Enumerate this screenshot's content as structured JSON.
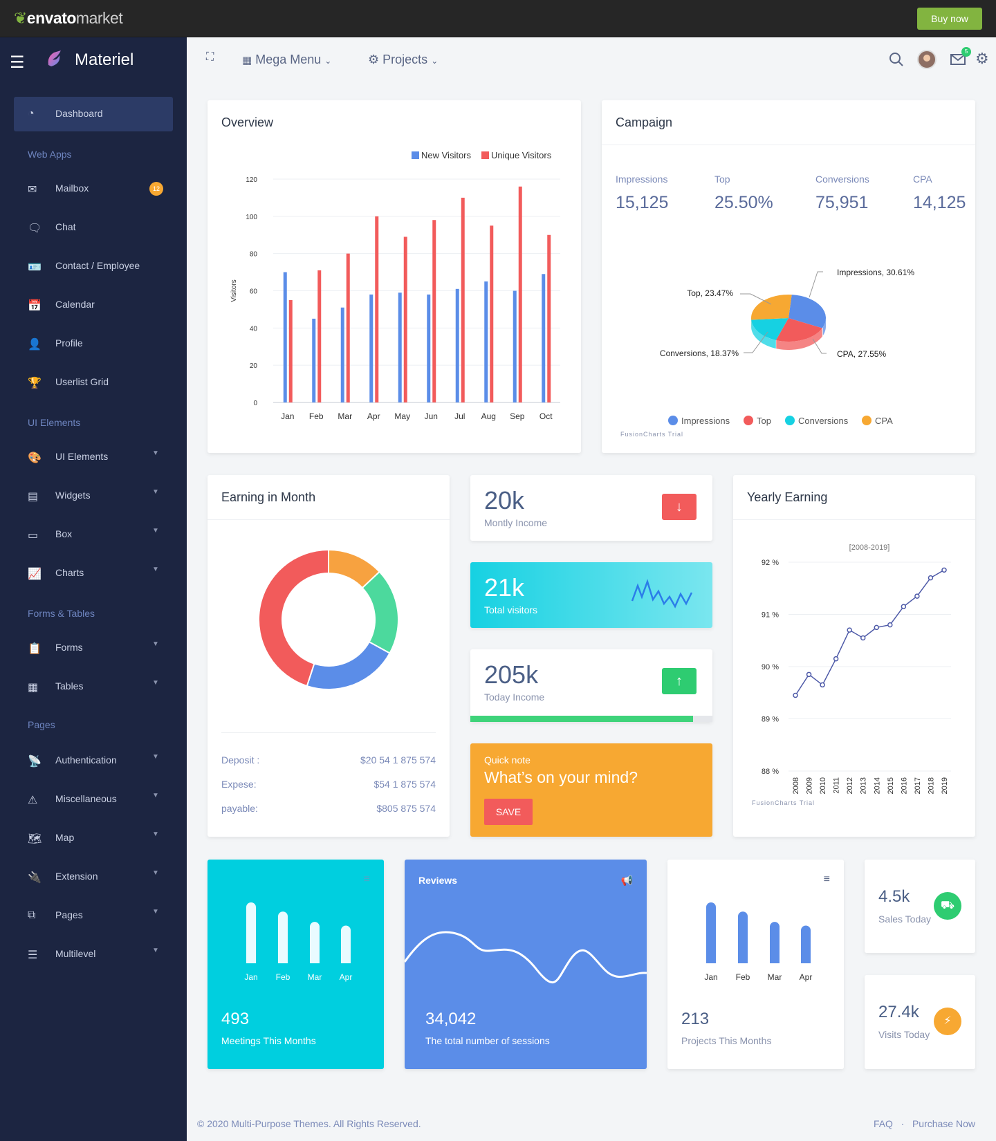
{
  "topbar": {
    "brand_envato": "envato",
    "brand_market": "market",
    "buy_label": "Buy now"
  },
  "sidebar": {
    "app_name": "Materiel",
    "dashboard": "Dashboard",
    "sections": [
      "Web Apps",
      "UI Elements",
      "Forms & Tables",
      "Pages"
    ],
    "items": [
      {
        "label": "Mailbox",
        "icon": "mail-icon"
      },
      {
        "label": "Chat",
        "icon": "chat-icon"
      },
      {
        "label": "Contact / Employee",
        "icon": "contact-card-icon"
      },
      {
        "label": "Calendar",
        "icon": "calendar-icon"
      },
      {
        "label": "Profile",
        "icon": "user-icon"
      },
      {
        "label": "Userlist Grid",
        "icon": "trophy-icon"
      },
      {
        "label": "UI Elements",
        "icon": "palette-icon"
      },
      {
        "label": "Widgets",
        "icon": "widget-icon"
      },
      {
        "label": "Box",
        "icon": "box-icon"
      },
      {
        "label": "Charts",
        "icon": "chart-line-icon"
      },
      {
        "label": "Forms",
        "icon": "clipboard-icon"
      },
      {
        "label": "Tables",
        "icon": "table-icon"
      },
      {
        "label": "Authentication",
        "icon": "antenna-icon"
      },
      {
        "label": "Miscellaneous",
        "icon": "warning-icon"
      },
      {
        "label": "Map",
        "icon": "map-icon"
      },
      {
        "label": "Extension",
        "icon": "plug-icon"
      },
      {
        "label": "Pages",
        "icon": "pages-icon"
      },
      {
        "label": "Multilevel",
        "icon": "layers-icon"
      }
    ],
    "mail_badge": "12"
  },
  "header": {
    "mega_menu": "Mega Menu",
    "projects": "Projects",
    "mail_count": "5"
  },
  "overview": {
    "title": "Overview",
    "chart_data": {
      "type": "bar",
      "categories": [
        "Jan",
        "Feb",
        "Mar",
        "Apr",
        "May",
        "Jun",
        "Jul",
        "Aug",
        "Sep",
        "Oct"
      ],
      "series": [
        {
          "name": "New Visitors",
          "color": "#5b8de8",
          "values": [
            70,
            45,
            51,
            58,
            59,
            58,
            61,
            65,
            60,
            69
          ]
        },
        {
          "name": "Unique Visitors",
          "color": "#f25b5b",
          "values": [
            55,
            71,
            80,
            100,
            89,
            98,
            110,
            95,
            116,
            90
          ]
        }
      ],
      "ylabel": "Visitors",
      "ylim": [
        0,
        120
      ],
      "yticks": [
        0,
        20,
        40,
        60,
        80,
        100,
        120
      ],
      "legend": "top-right",
      "grid": true
    }
  },
  "campaign": {
    "title": "Campaign",
    "stats": [
      {
        "label": "Impressions",
        "value": "15,125"
      },
      {
        "label": "Top",
        "value": "25.50%"
      },
      {
        "label": "Conversions",
        "value": "75,951"
      },
      {
        "label": "CPA",
        "value": "14,125"
      }
    ],
    "chart_data": {
      "type": "pie",
      "labels": [
        "Impressions",
        "Top",
        "Conversions",
        "CPA"
      ],
      "values": [
        30.61,
        23.47,
        18.37,
        27.55
      ],
      "slice_labels": [
        "Impressions, 30.61%",
        "Top, 23.47%",
        "Conversions, 18.37%",
        "CPA, 27.55%"
      ],
      "colors": [
        "#5b8de8",
        "#f25b5b",
        "#16d1e2",
        "#f7a832"
      ],
      "legend": "bottom"
    },
    "credit": "FusionCharts Trial"
  },
  "earning": {
    "title": "Earning in Month",
    "chart_data": {
      "type": "pie",
      "values": [
        45,
        13,
        20,
        22
      ],
      "colors": [
        "#f25b5b",
        "#f7a240",
        "#4cd99d",
        "#5b8de8"
      ]
    },
    "rows": [
      {
        "label": "Deposit :",
        "value": "$20 54 1 875 574"
      },
      {
        "label": "Expese:",
        "value": "$54 1 875 574"
      },
      {
        "label": "payable:",
        "value": "$805 875 574"
      }
    ]
  },
  "income": {
    "value": "20k",
    "label": "Montly Income"
  },
  "visitors": {
    "value": "21k",
    "label": "Total visitors"
  },
  "today": {
    "value": "205k",
    "label": "Today Income",
    "progress": 0.92
  },
  "note": {
    "small": "Quick note",
    "big": "What’s on your mind?",
    "save": "SAVE"
  },
  "yearly": {
    "title": "Yearly Earning",
    "chart_data": {
      "type": "line",
      "subtitle": "[2008-2019]",
      "x": [
        "2008",
        "2009",
        "2010",
        "2011",
        "2012",
        "2013",
        "2014",
        "2015",
        "2016",
        "2017",
        "2018",
        "2019"
      ],
      "values": [
        89.45,
        89.85,
        89.65,
        90.15,
        90.7,
        90.55,
        90.75,
        90.8,
        91.15,
        91.35,
        91.7,
        91.85
      ],
      "ylim": [
        88,
        92
      ],
      "yticks": [
        "88 %",
        "89 %",
        "90 %",
        "91 %",
        "92 %"
      ]
    },
    "credit": "FusionCharts Trial"
  },
  "meetings": {
    "value": "493",
    "label": "Meetings This Months",
    "chart_data": {
      "type": "bar",
      "categories": [
        "Jan",
        "Feb",
        "Mar",
        "Apr"
      ],
      "values": [
        100,
        85,
        68,
        62
      ]
    }
  },
  "reviews": {
    "title": "Reviews",
    "value": "34,042",
    "label": "The total number of sessions"
  },
  "projects": {
    "value": "213",
    "label": "Projects This Months",
    "chart_data": {
      "type": "bar",
      "categories": [
        "Jan",
        "Feb",
        "Mar",
        "Apr"
      ],
      "values": [
        100,
        85,
        68,
        62
      ]
    }
  },
  "sales": {
    "value": "4.5k",
    "label": "Sales Today"
  },
  "visits": {
    "value": "27.4k",
    "label": "Visits Today"
  },
  "footer": {
    "copyright": "© 2020 Multi-Purpose Themes. All Rights Reserved.",
    "faq": "FAQ",
    "purchase": "Purchase Now"
  }
}
